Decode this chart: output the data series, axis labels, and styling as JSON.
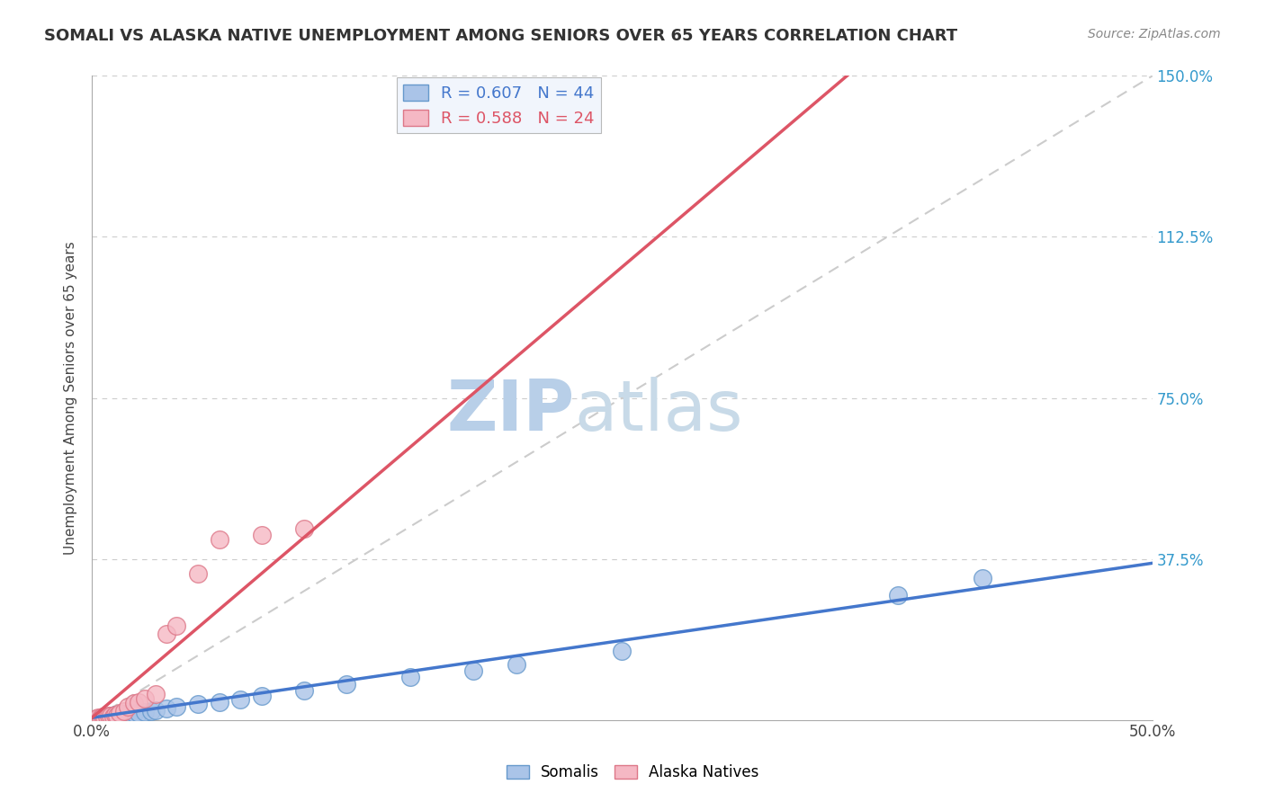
{
  "title": "SOMALI VS ALASKA NATIVE UNEMPLOYMENT AMONG SENIORS OVER 65 YEARS CORRELATION CHART",
  "source": "Source: ZipAtlas.com",
  "ylabel_label": "Unemployment Among Seniors over 65 years",
  "xmin": 0.0,
  "xmax": 0.5,
  "ymin": 0.0,
  "ymax": 1.5,
  "somali_R": 0.607,
  "somali_N": 44,
  "alaska_R": 0.588,
  "alaska_N": 24,
  "somali_color": "#aac4e8",
  "alaska_color": "#f5b8c4",
  "somali_edge": "#6699cc",
  "alaska_edge": "#dd7788",
  "somali_line_color": "#4477cc",
  "alaska_line_color": "#dd5566",
  "ref_line_color": "#cccccc",
  "watermark_zip_color": "#c8daf0",
  "watermark_atlas_color": "#c8daf0",
  "legend_box_color": "#eef3fc",
  "somali_x": [
    0.002,
    0.003,
    0.004,
    0.005,
    0.005,
    0.006,
    0.006,
    0.007,
    0.007,
    0.008,
    0.008,
    0.009,
    0.009,
    0.01,
    0.01,
    0.011,
    0.011,
    0.012,
    0.012,
    0.013,
    0.014,
    0.015,
    0.016,
    0.017,
    0.018,
    0.02,
    0.022,
    0.025,
    0.028,
    0.03,
    0.035,
    0.04,
    0.05,
    0.06,
    0.07,
    0.08,
    0.1,
    0.12,
    0.15,
    0.18,
    0.2,
    0.25,
    0.38,
    0.42
  ],
  "somali_y": [
    0.002,
    0.003,
    0.003,
    0.004,
    0.005,
    0.004,
    0.006,
    0.005,
    0.007,
    0.006,
    0.008,
    0.007,
    0.009,
    0.008,
    0.01,
    0.009,
    0.011,
    0.01,
    0.012,
    0.011,
    0.013,
    0.012,
    0.014,
    0.013,
    0.015,
    0.016,
    0.017,
    0.019,
    0.021,
    0.023,
    0.026,
    0.03,
    0.036,
    0.042,
    0.048,
    0.055,
    0.068,
    0.082,
    0.1,
    0.115,
    0.13,
    0.16,
    0.29,
    0.33
  ],
  "alaska_x": [
    0.002,
    0.003,
    0.004,
    0.005,
    0.006,
    0.007,
    0.008,
    0.009,
    0.01,
    0.011,
    0.012,
    0.013,
    0.015,
    0.017,
    0.02,
    0.022,
    0.025,
    0.03,
    0.035,
    0.04,
    0.05,
    0.06,
    0.08,
    0.1
  ],
  "alaska_y": [
    0.003,
    0.005,
    0.006,
    0.007,
    0.005,
    0.008,
    0.009,
    0.01,
    0.007,
    0.012,
    0.01,
    0.015,
    0.02,
    0.03,
    0.038,
    0.042,
    0.05,
    0.06,
    0.2,
    0.22,
    0.34,
    0.42,
    0.43,
    0.445
  ],
  "background_color": "#ffffff",
  "grid_color": "#cccccc",
  "somali_line_slope": 0.72,
  "somali_line_intercept": 0.005,
  "alaska_line_slope": 4.2,
  "alaska_line_intercept": 0.005
}
